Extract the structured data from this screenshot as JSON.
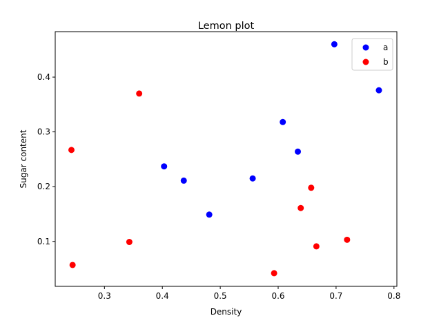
{
  "chart_data": {
    "type": "scatter",
    "title": "Lemon plot",
    "xlabel": "Density",
    "ylabel": "Sugar content",
    "xlim": [
      0.215,
      0.805
    ],
    "ylim": [
      0.018,
      0.483
    ],
    "xticks": [
      0.3,
      0.4,
      0.5,
      0.6,
      0.7,
      0.8
    ],
    "xtick_labels": [
      "0.3",
      "0.4",
      "0.5",
      "0.6",
      "0.7",
      "0.8"
    ],
    "yticks": [
      0.1,
      0.2,
      0.3,
      0.4
    ],
    "ytick_labels": [
      "0.1",
      "0.2",
      "0.3",
      "0.4"
    ],
    "grid": false,
    "legend_position": "top-right",
    "series": [
      {
        "name": "a",
        "color": "#0000ff",
        "points": [
          {
            "x": 0.697,
            "y": 0.46
          },
          {
            "x": 0.774,
            "y": 0.376
          },
          {
            "x": 0.634,
            "y": 0.264
          },
          {
            "x": 0.608,
            "y": 0.318
          },
          {
            "x": 0.556,
            "y": 0.215
          },
          {
            "x": 0.403,
            "y": 0.237
          },
          {
            "x": 0.481,
            "y": 0.149
          },
          {
            "x": 0.437,
            "y": 0.211
          }
        ]
      },
      {
        "name": "b",
        "color": "#ff0000",
        "points": [
          {
            "x": 0.36,
            "y": 0.37
          },
          {
            "x": 0.243,
            "y": 0.267
          },
          {
            "x": 0.245,
            "y": 0.057
          },
          {
            "x": 0.343,
            "y": 0.099
          },
          {
            "x": 0.639,
            "y": 0.161
          },
          {
            "x": 0.657,
            "y": 0.198
          },
          {
            "x": 0.666,
            "y": 0.091
          },
          {
            "x": 0.719,
            "y": 0.103
          },
          {
            "x": 0.593,
            "y": 0.042
          }
        ]
      }
    ]
  }
}
